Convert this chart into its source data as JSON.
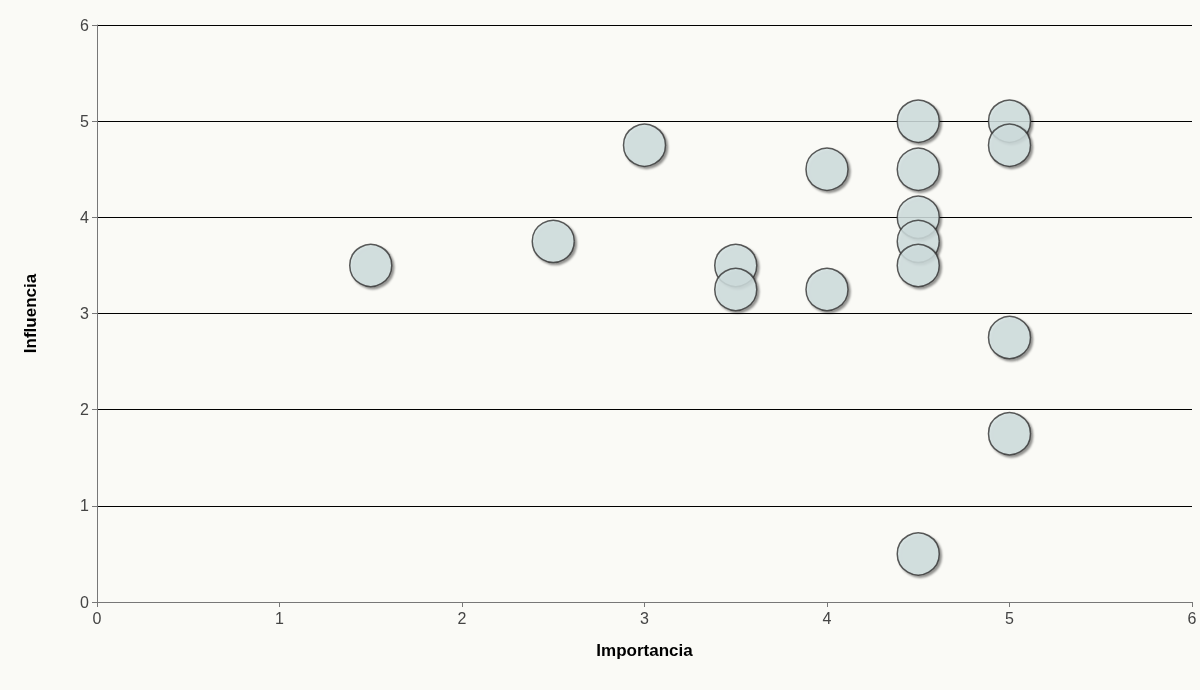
{
  "chart_data": {
    "type": "scatter",
    "xlabel": "Importancia",
    "ylabel": "Influencia",
    "x": [
      1.5,
      2.5,
      3,
      3.5,
      3.5,
      4,
      4,
      4.5,
      4.5,
      4.5,
      4.5,
      4.5,
      4.5,
      5,
      5,
      5,
      5
    ],
    "series": [
      {
        "color": "#d4e4e4",
        "values": [
          3.5,
          3.75,
          4.75,
          3.5,
          3.25,
          4.5,
          3.25,
          5,
          4.5,
          4,
          3.75,
          3.5,
          0.5,
          5,
          4.75,
          2.75,
          1.75
        ]
      }
    ],
    "xlim": [
      0,
      6
    ],
    "xticks": [
      0,
      1,
      2,
      3,
      4,
      5,
      6
    ],
    "ylim": [
      0,
      6
    ],
    "yticks": [
      0,
      1,
      2,
      3,
      4,
      5,
      6
    ],
    "grid": "y",
    "marker": "circle"
  }
}
